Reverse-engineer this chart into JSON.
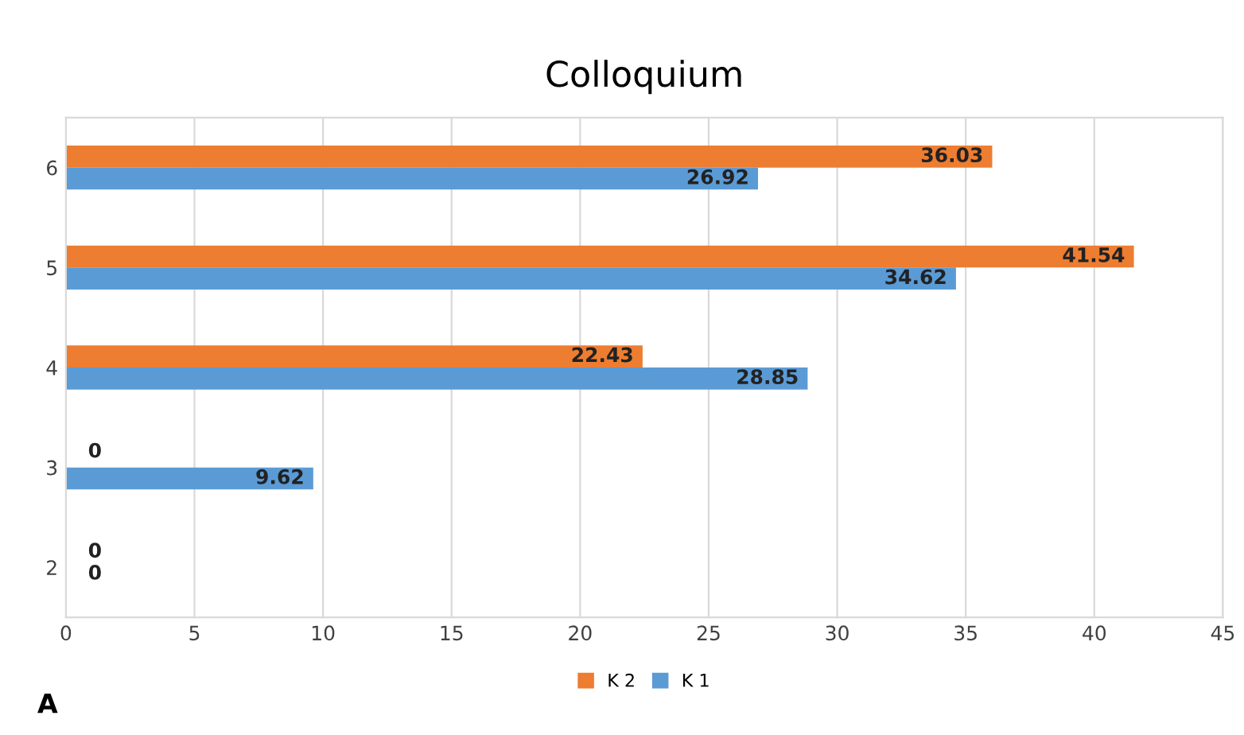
{
  "chart_data": {
    "type": "bar",
    "title": "Colloquium",
    "orientation": "horizontal",
    "categories": [
      "6",
      "5",
      "4",
      "3",
      "2"
    ],
    "series": [
      {
        "name": "K 2",
        "color": "#ed7d31",
        "values": [
          36.03,
          41.54,
          22.43,
          0,
          0
        ]
      },
      {
        "name": "K 1",
        "color": "#5b9bd5",
        "values": [
          26.92,
          34.62,
          28.85,
          9.62,
          0
        ]
      }
    ],
    "xlim": [
      0,
      45
    ],
    "xticks": [
      0,
      5,
      10,
      15,
      20,
      25,
      30,
      35,
      40,
      45
    ],
    "grid": "x",
    "legend": "bottom",
    "data_labels": true,
    "annotations": [
      "A"
    ]
  }
}
